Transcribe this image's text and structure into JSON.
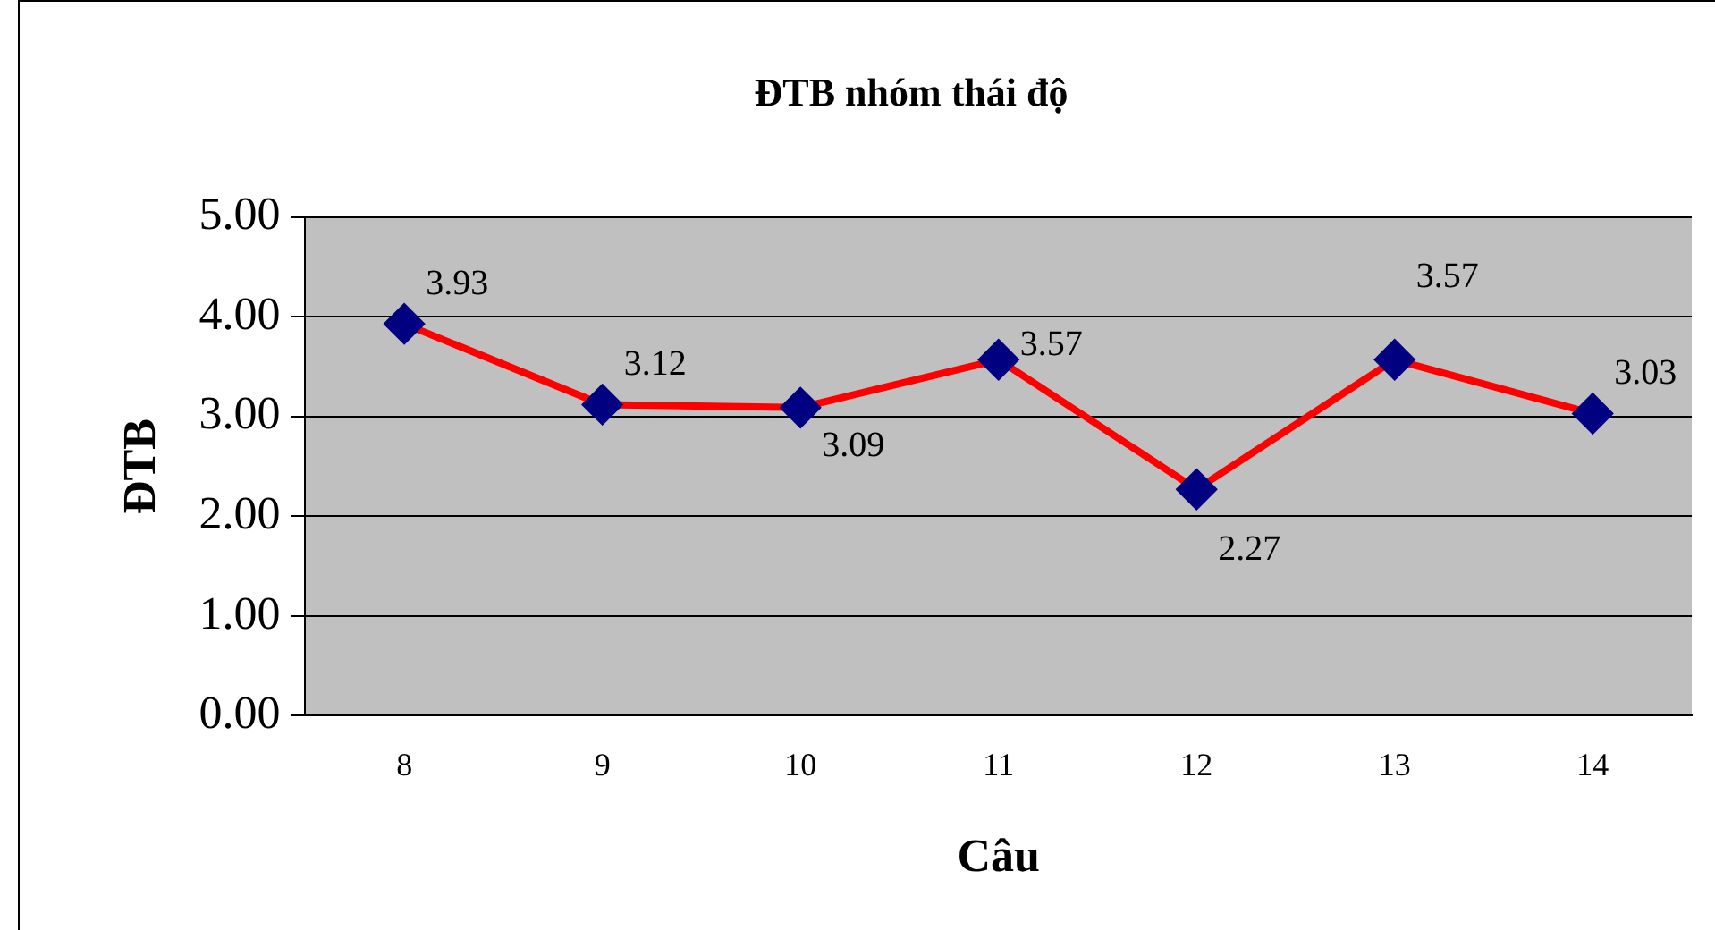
{
  "chart_data": {
    "type": "line",
    "title": "ĐTB nhóm thái độ",
    "xlabel": "Câu",
    "ylabel": "ĐTB",
    "categories": [
      "8",
      "9",
      "10",
      "11",
      "12",
      "13",
      "14"
    ],
    "series": [
      {
        "color": "#ff0000",
        "values": [
          3.93,
          3.12,
          3.09,
          3.57,
          2.27,
          3.57,
          3.03
        ]
      }
    ],
    "ylim": [
      0,
      5
    ],
    "yticks": [
      {
        "value": 0,
        "label": "0.00"
      },
      {
        "value": 1,
        "label": "1.00"
      },
      {
        "value": 2,
        "label": "2.00"
      },
      {
        "value": 3,
        "label": "3.00"
      },
      {
        "value": 4,
        "label": "4.00"
      },
      {
        "value": 5,
        "label": "5.00"
      }
    ],
    "grid": "y",
    "legend": false,
    "marker": "diamond",
    "line_style": "solid",
    "data_labels": true
  }
}
